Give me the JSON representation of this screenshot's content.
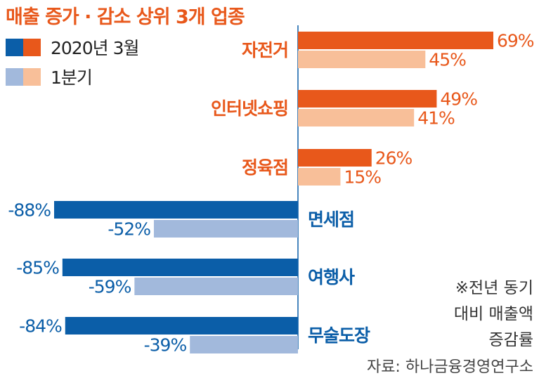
{
  "title": "매출 증가 · 감소 상위 3개 업종",
  "legend": [
    {
      "label": "2020년 3월",
      "colors": [
        "#0b5ea8",
        "#e8581b"
      ]
    },
    {
      "label": "1분기",
      "colors": [
        "#a2b9dc",
        "#f8bf99"
      ]
    }
  ],
  "note": [
    "※전년 동기",
    "대비 매출액",
    "증감률"
  ],
  "source": "자료: 하나금융경영연구소",
  "colors": {
    "increase_march": "#e8581b",
    "increase_q1": "#f8bf99",
    "decrease_march": "#0b5ea8",
    "decrease_q1": "#a2b9dc",
    "axis": "#0b5ea8",
    "increase_text": "#e8581b",
    "decrease_text": "#0b5ea8"
  },
  "chart_data": {
    "type": "bar",
    "title": "매출 증가 · 감소 상위 3개 업종",
    "unit": "%",
    "categories": [
      "자전거",
      "인터넷쇼핑",
      "정육점",
      "면세점",
      "여행사",
      "무술도장"
    ],
    "series": [
      {
        "name": "2020년 3월",
        "values": [
          69,
          49,
          26,
          -88,
          -85,
          -84
        ],
        "labels": [
          "69%",
          "49%",
          "26%",
          "-88%",
          "-85%",
          "-84%"
        ]
      },
      {
        "name": "1분기",
        "values": [
          45,
          41,
          15,
          -52,
          -59,
          -39
        ],
        "labels": [
          "45%",
          "41%",
          "15%",
          "-52%",
          "-59%",
          "-39%"
        ]
      }
    ],
    "orientation": "horizontal",
    "ylim": [
      -88,
      69
    ],
    "grid": false,
    "legend_position": "top-left"
  }
}
